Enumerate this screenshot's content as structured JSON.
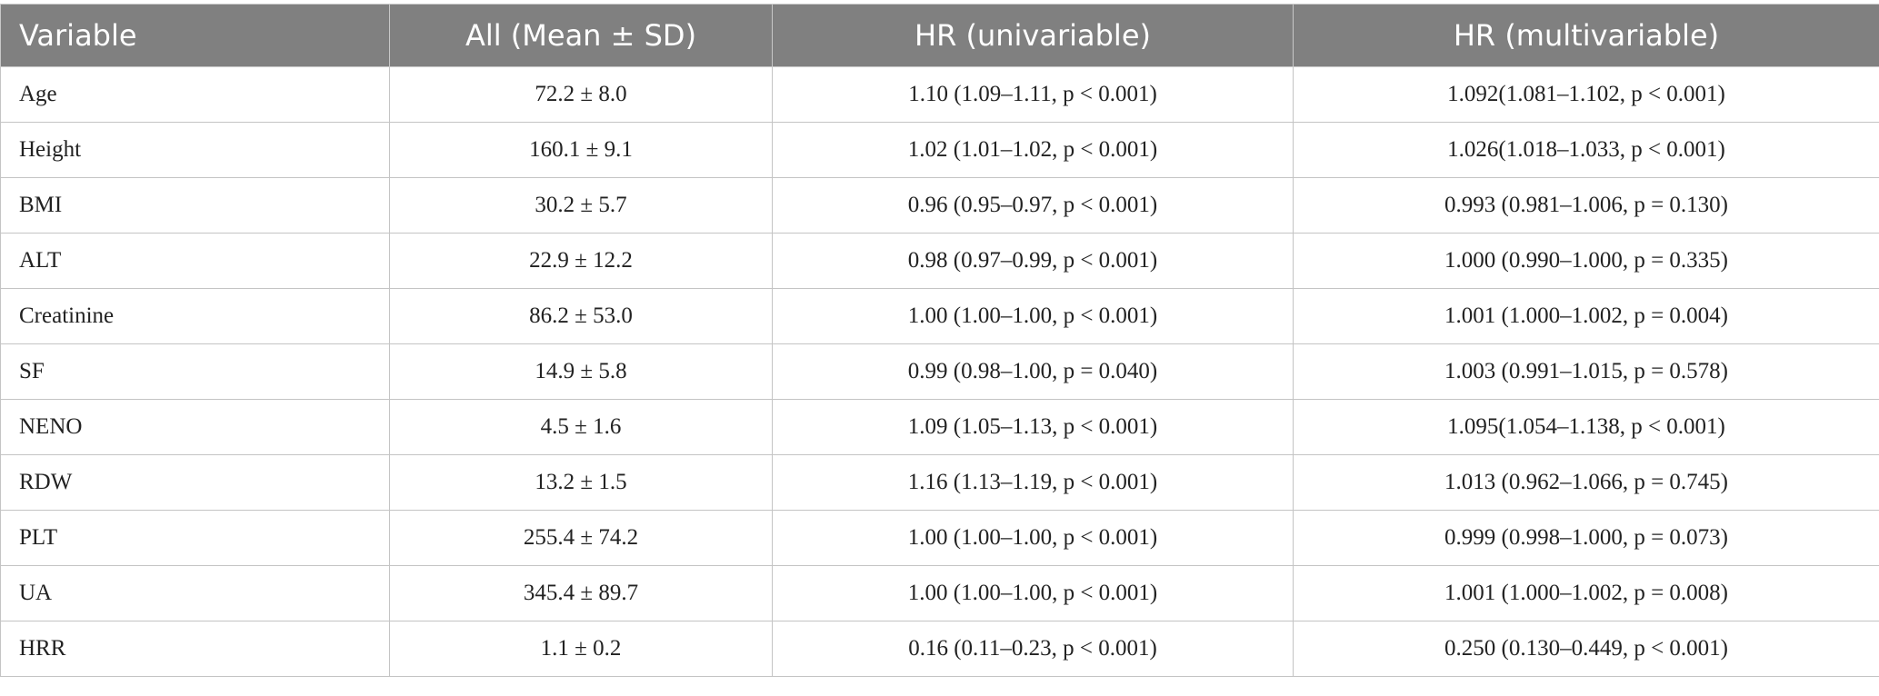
{
  "table": {
    "header": [
      "Variable",
      "All (Mean ± SD)",
      "HR (univariable)",
      "HR (multivariable)"
    ],
    "rows": [
      [
        "Age",
        "72.2 ± 8.0",
        "1.10 (1.09–1.11, p < 0.001)",
        "1.092(1.081–1.102, p < 0.001)"
      ],
      [
        "Height",
        "160.1 ± 9.1",
        "1.02 (1.01–1.02, p < 0.001)",
        "1.026(1.018–1.033, p < 0.001)"
      ],
      [
        "BMI",
        "30.2 ± 5.7",
        "0.96 (0.95–0.97, p < 0.001)",
        "0.993 (0.981–1.006, p = 0.130)"
      ],
      [
        "ALT",
        "22.9 ± 12.2",
        "0.98 (0.97–0.99, p < 0.001)",
        "1.000 (0.990–1.000, p = 0.335)"
      ],
      [
        "Creatinine",
        "86.2 ± 53.0",
        "1.00 (1.00–1.00, p < 0.001)",
        "1.001 (1.000–1.002, p = 0.004)"
      ],
      [
        "SF",
        "14.9 ± 5.8",
        "0.99 (0.98–1.00, p = 0.040)",
        "1.003 (0.991–1.015, p = 0.578)"
      ],
      [
        "NENO",
        "4.5 ± 1.6",
        "1.09 (1.05–1.13, p < 0.001)",
        "1.095(1.054–1.138, p < 0.001)"
      ],
      [
        "RDW",
        "13.2 ± 1.5",
        "1.16 (1.13–1.19, p < 0.001)",
        "1.013 (0.962–1.066, p = 0.745)"
      ],
      [
        "PLT",
        "255.4 ± 74.2",
        "1.00 (1.00–1.00, p < 0.001)",
        "0.999 (0.998–1.000, p = 0.073)"
      ],
      [
        "UA",
        "345.4 ± 89.7",
        "1.00 (1.00–1.00, p < 0.001)",
        "1.001 (1.000–1.002, p = 0.008)"
      ],
      [
        "HRR",
        "1.1 ± 0.2",
        "0.16 (0.11–0.23, p < 0.001)",
        "0.250 (0.130–0.449, p < 0.001)"
      ]
    ]
  }
}
